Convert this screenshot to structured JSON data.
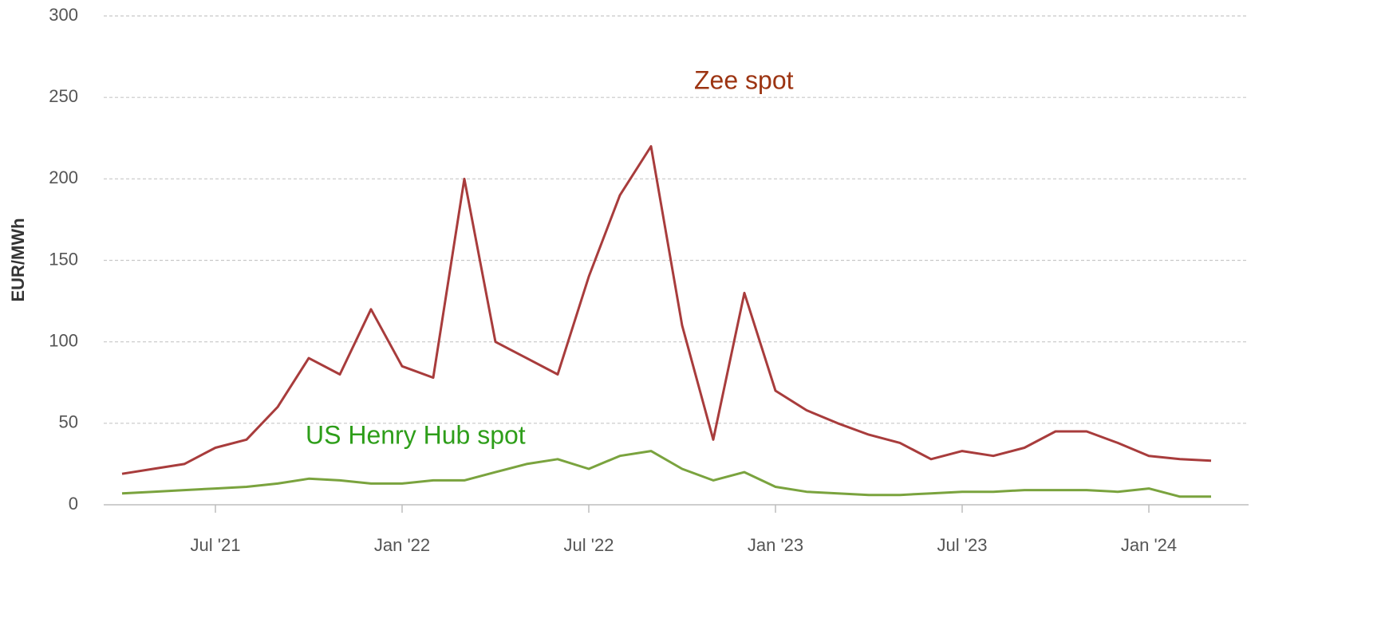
{
  "chart_data": {
    "type": "line",
    "y_label": "EUR/MWh",
    "x": [
      "2021-04",
      "2021-05",
      "2021-06",
      "2021-07",
      "2021-08",
      "2021-09",
      "2021-10",
      "2021-11",
      "2021-12",
      "2022-01",
      "2022-02",
      "2022-03",
      "2022-04",
      "2022-05",
      "2022-06",
      "2022-07",
      "2022-08",
      "2022-09",
      "2022-10",
      "2022-11",
      "2022-12",
      "2023-01",
      "2023-02",
      "2023-03",
      "2023-04",
      "2023-05",
      "2023-06",
      "2023-07",
      "2023-08",
      "2023-09",
      "2023-10",
      "2023-11",
      "2023-12",
      "2024-01",
      "2024-02",
      "2024-03"
    ],
    "series": [
      {
        "name": "Zee spot",
        "color": "#a83c3c",
        "label_color": "#9c3412",
        "values": [
          19,
          22,
          25,
          35,
          40,
          60,
          90,
          80,
          120,
          85,
          78,
          200,
          100,
          90,
          80,
          140,
          190,
          220,
          110,
          40,
          130,
          70,
          58,
          50,
          43,
          38,
          28,
          33,
          30,
          35,
          45,
          45,
          38,
          30,
          28,
          27
        ]
      },
      {
        "name": "US Henry Hub spot",
        "color": "#7aa33e",
        "label_color": "#2e9e1a",
        "values": [
          7,
          8,
          9,
          10,
          11,
          13,
          16,
          15,
          13,
          13,
          15,
          15,
          20,
          25,
          28,
          22,
          30,
          33,
          22,
          15,
          20,
          11,
          8,
          7,
          6,
          6,
          7,
          8,
          8,
          9,
          9,
          9,
          8,
          10,
          5,
          5
        ]
      }
    ],
    "xlim": [
      "2021-03",
      "2024-04"
    ],
    "xticks": [
      {
        "value": "2021-07",
        "label": "Jul '21"
      },
      {
        "value": "2022-01",
        "label": "Jan '22"
      },
      {
        "value": "2022-07",
        "label": "Jul '22"
      },
      {
        "value": "2023-01",
        "label": "Jan '23"
      },
      {
        "value": "2023-07",
        "label": "Jul '23"
      },
      {
        "value": "2024-01",
        "label": "Jan '24"
      }
    ],
    "ylim": [
      0,
      300
    ],
    "yticks": [
      0,
      50,
      100,
      150,
      200,
      250,
      300
    ],
    "grid": true
  }
}
